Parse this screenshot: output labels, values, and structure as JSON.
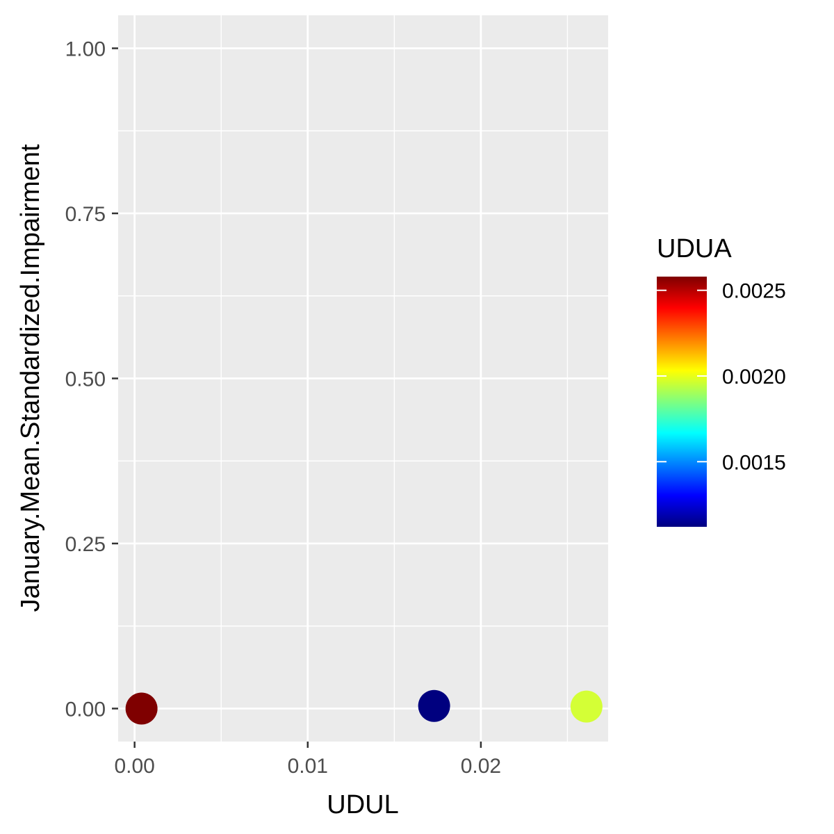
{
  "chart_data": {
    "type": "scatter",
    "xlabel": "UDUL",
    "ylabel": "January.Mean.Standardized.Impairment",
    "xlim": [
      -0.00095,
      0.02735
    ],
    "ylim": [
      -0.05,
      1.05
    ],
    "x_ticks": [
      0.0,
      0.01,
      0.02
    ],
    "x_tick_labels": [
      "0.00",
      "0.01",
      "0.02"
    ],
    "y_ticks": [
      0.0,
      0.25,
      0.5,
      0.75,
      1.0
    ],
    "y_tick_labels": [
      "0.00",
      "0.25",
      "0.50",
      "0.75",
      "1.00"
    ],
    "grid": true,
    "panel_background": "#ebebeb",
    "grid_color": "#ffffff",
    "points": [
      {
        "x": 0.0004,
        "y": 0.0,
        "color_value": 0.00258,
        "color": "#7f0000"
      },
      {
        "x": 0.0173,
        "y": 0.004,
        "color_value": 0.00112,
        "color": "#00007f"
      },
      {
        "x": 0.0261,
        "y": 0.003,
        "color_value": 0.00201,
        "color": "#d4ff36"
      }
    ],
    "color_legend": {
      "title": "UDUA",
      "position": "right",
      "range": [
        0.00112,
        0.00258
      ],
      "ticks": [
        0.0015,
        0.002,
        0.0025
      ],
      "tick_labels": [
        "0.0015",
        "0.0020",
        "0.0025"
      ],
      "gradient": [
        "#00007f",
        "#0000ff",
        "#007fff",
        "#00ffff",
        "#7fff7f",
        "#ffff00",
        "#ff7f00",
        "#ff0000",
        "#7f0000"
      ]
    }
  }
}
